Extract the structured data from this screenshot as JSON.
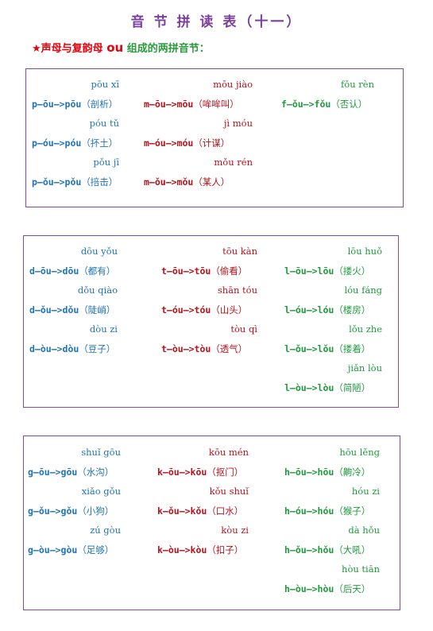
{
  "title": "音 节 拼 读 表（十一）",
  "subtitle": {
    "star": "★",
    "text1": "声母与复韵母",
    "ou": "ou",
    "text2": "组成的两拼音节："
  },
  "sections": [
    {
      "columns": [
        {
          "color": "blue",
          "items": [
            {
              "pinyin": "pōu xī",
              "spell": "p—ōu—>pōu",
              "word": "（剖析）"
            },
            {
              "pinyin": "póu tǔ",
              "spell": "p—óu—>póu",
              "word": "（抔土）"
            },
            {
              "pinyin": "pǒu jī",
              "spell": "p—ǒu—>pǒu",
              "word": "（掊击）"
            }
          ]
        },
        {
          "color": "red",
          "items": [
            {
              "pinyin": "mōu  jiào",
              "spell": "m—ōu—>mōu",
              "word": "（哞哞叫）"
            },
            {
              "pinyin": "jì móu",
              "spell": "m—óu—>móu",
              "word": "（计谋）"
            },
            {
              "pinyin": "mǒu rén",
              "spell": "m—ǒu—>mǒu",
              "word": "（某人）"
            }
          ]
        },
        {
          "color": "green",
          "items": [
            {
              "pinyin": "fǒu rèn",
              "spell": "f—ǒu—>fǒu",
              "word": "（否认）"
            }
          ]
        }
      ]
    },
    {
      "columns": [
        {
          "color": "blue",
          "items": [
            {
              "pinyin": "dōu yǒu",
              "spell": "d—ōu—>dōu",
              "word": "（都有）"
            },
            {
              "pinyin": "dǒu qiào",
              "spell": "d—ǒu—>dǒu",
              "word": "（陡峭）"
            },
            {
              "pinyin": "dòu zi",
              "spell": "d—òu—>dòu",
              "word": "（豆子）"
            }
          ]
        },
        {
          "color": "red",
          "items": [
            {
              "pinyin": "tōu kàn",
              "spell": "t—ōu—>tōu",
              "word": "（偷看）"
            },
            {
              "pinyin": "shān tóu",
              "spell": "t—óu—>tóu",
              "word": "（山头）"
            },
            {
              "pinyin": "tòu qì",
              "spell": "t—òu—>tòu",
              "word": "（透气）"
            }
          ]
        },
        {
          "color": "green",
          "items": [
            {
              "pinyin": "lōu  huǒ",
              "spell": "l—ōu—>lōu",
              "word": "（搂火）"
            },
            {
              "pinyin": "lóu fáng",
              "spell": "l—óu—>lóu",
              "word": "（楼房）"
            },
            {
              "pinyin": "lǒu zhe",
              "spell": "l—ǒu—>lǒu",
              "word": "（搂着）"
            },
            {
              "pinyin": "jiǎn lòu",
              "spell": "l—òu—>lòu",
              "word": "（简陋）"
            }
          ]
        }
      ]
    },
    {
      "columns": [
        {
          "color": "blue",
          "items": [
            {
              "pinyin": "shuǐ gōu",
              "spell": "g—ōu—>gōu",
              "word": "（水沟）"
            },
            {
              "pinyin": "xiǎo gǒu",
              "spell": "g—ǒu—>gǒu",
              "word": "（小狗）"
            },
            {
              "pinyin": "zú gòu",
              "spell": "g—òu—>gòu",
              "word": "（足够）"
            }
          ]
        },
        {
          "color": "red",
          "items": [
            {
              "pinyin": "kōu mén",
              "spell": "k—ōu—>kōu",
              "word": "（抠门）"
            },
            {
              "pinyin": "kǒu shuǐ",
              "spell": "k—ǒu—>kǒu",
              "word": "（口水）"
            },
            {
              "pinyin": "kòu zi",
              "spell": "k—òu—>kòu",
              "word": "（扣子）"
            }
          ]
        },
        {
          "color": "green",
          "items": [
            {
              "pinyin": "hōu lěng",
              "spell": "h—ōu—>hōu",
              "word": "（齁冷）"
            },
            {
              "pinyin": "hóu zi",
              "spell": "h—óu—>hóu",
              "word": "（猴子）"
            },
            {
              "pinyin": "dà hǒu",
              "spell": "h—ǒu—>hǒu",
              "word": "（大吼）"
            },
            {
              "pinyin": "hòu tiān",
              "spell": "h—òu—>hòu",
              "word": "（后天）"
            }
          ]
        }
      ]
    }
  ]
}
